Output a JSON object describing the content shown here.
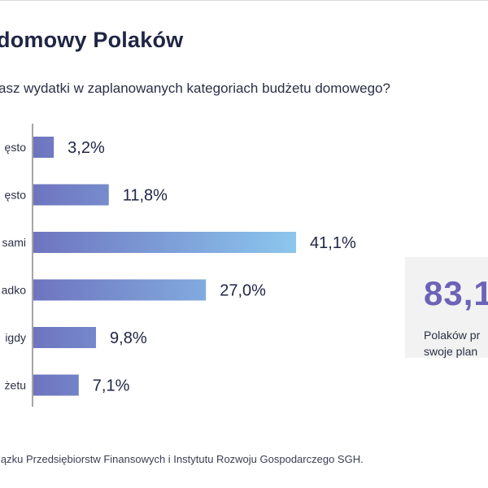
{
  "title": "domowy Polaków",
  "subtitle": "asz wydatki w zaplanowanych kategoriach budżetu domowego?",
  "chart_data": {
    "type": "bar",
    "orientation": "horizontal",
    "categories": [
      "ęsto",
      "ęsto",
      "sami",
      "adko",
      "igdy",
      "żetu"
    ],
    "values": [
      3.2,
      11.8,
      41.1,
      27.0,
      9.8,
      7.1
    ],
    "value_labels": [
      "3,2%",
      "11,8%",
      "41,1%",
      "27,0%",
      "9,8%",
      "7,1%"
    ],
    "colors": {
      "bar_start": "#6e74bf",
      "bar_end": "#8cc6ee",
      "axis": "#888888"
    }
  },
  "callout": {
    "value": "83,1",
    "text_line1": "Polaków pr",
    "text_line2": "swoje plan"
  },
  "source": "iązku Przedsiębiorstw Finansowych i Instytutu Rozwoju Gospodarczego SGH."
}
